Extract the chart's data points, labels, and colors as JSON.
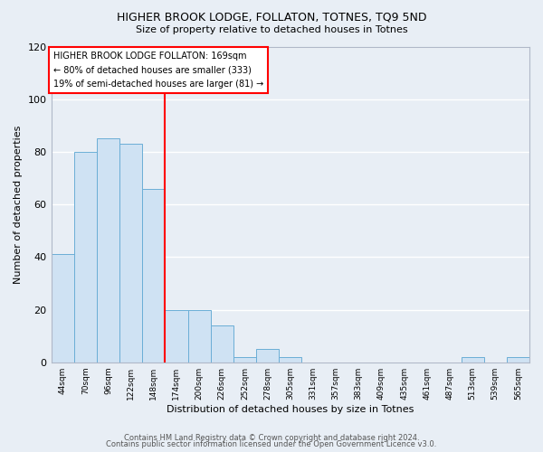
{
  "title1": "HIGHER BROOK LODGE, FOLLATON, TOTNES, TQ9 5ND",
  "title2": "Size of property relative to detached houses in Totnes",
  "xlabel": "Distribution of detached houses by size in Totnes",
  "ylabel": "Number of detached properties",
  "bar_labels": [
    "44sqm",
    "70sqm",
    "96sqm",
    "122sqm",
    "148sqm",
    "174sqm",
    "200sqm",
    "226sqm",
    "252sqm",
    "278sqm",
    "305sqm",
    "331sqm",
    "357sqm",
    "383sqm",
    "409sqm",
    "435sqm",
    "461sqm",
    "487sqm",
    "513sqm",
    "539sqm",
    "565sqm"
  ],
  "bar_values": [
    41,
    80,
    85,
    83,
    66,
    20,
    20,
    14,
    2,
    5,
    2,
    0,
    0,
    0,
    0,
    0,
    0,
    0,
    2,
    0,
    2
  ],
  "bar_color": "#cfe2f3",
  "bar_edge_color": "#6baed6",
  "vline_color": "red",
  "ylim": [
    0,
    120
  ],
  "yticks": [
    0,
    20,
    40,
    60,
    80,
    100,
    120
  ],
  "annotation_line1": "HIGHER BROOK LODGE FOLLATON: 169sqm",
  "annotation_line2": "← 80% of detached houses are smaller (333)",
  "annotation_line3": "19% of semi-detached houses are larger (81) →",
  "footer1": "Contains HM Land Registry data © Crown copyright and database right 2024.",
  "footer2": "Contains public sector information licensed under the Open Government Licence v3.0.",
  "background_color": "#e8eef5",
  "grid_color": "#ffffff"
}
